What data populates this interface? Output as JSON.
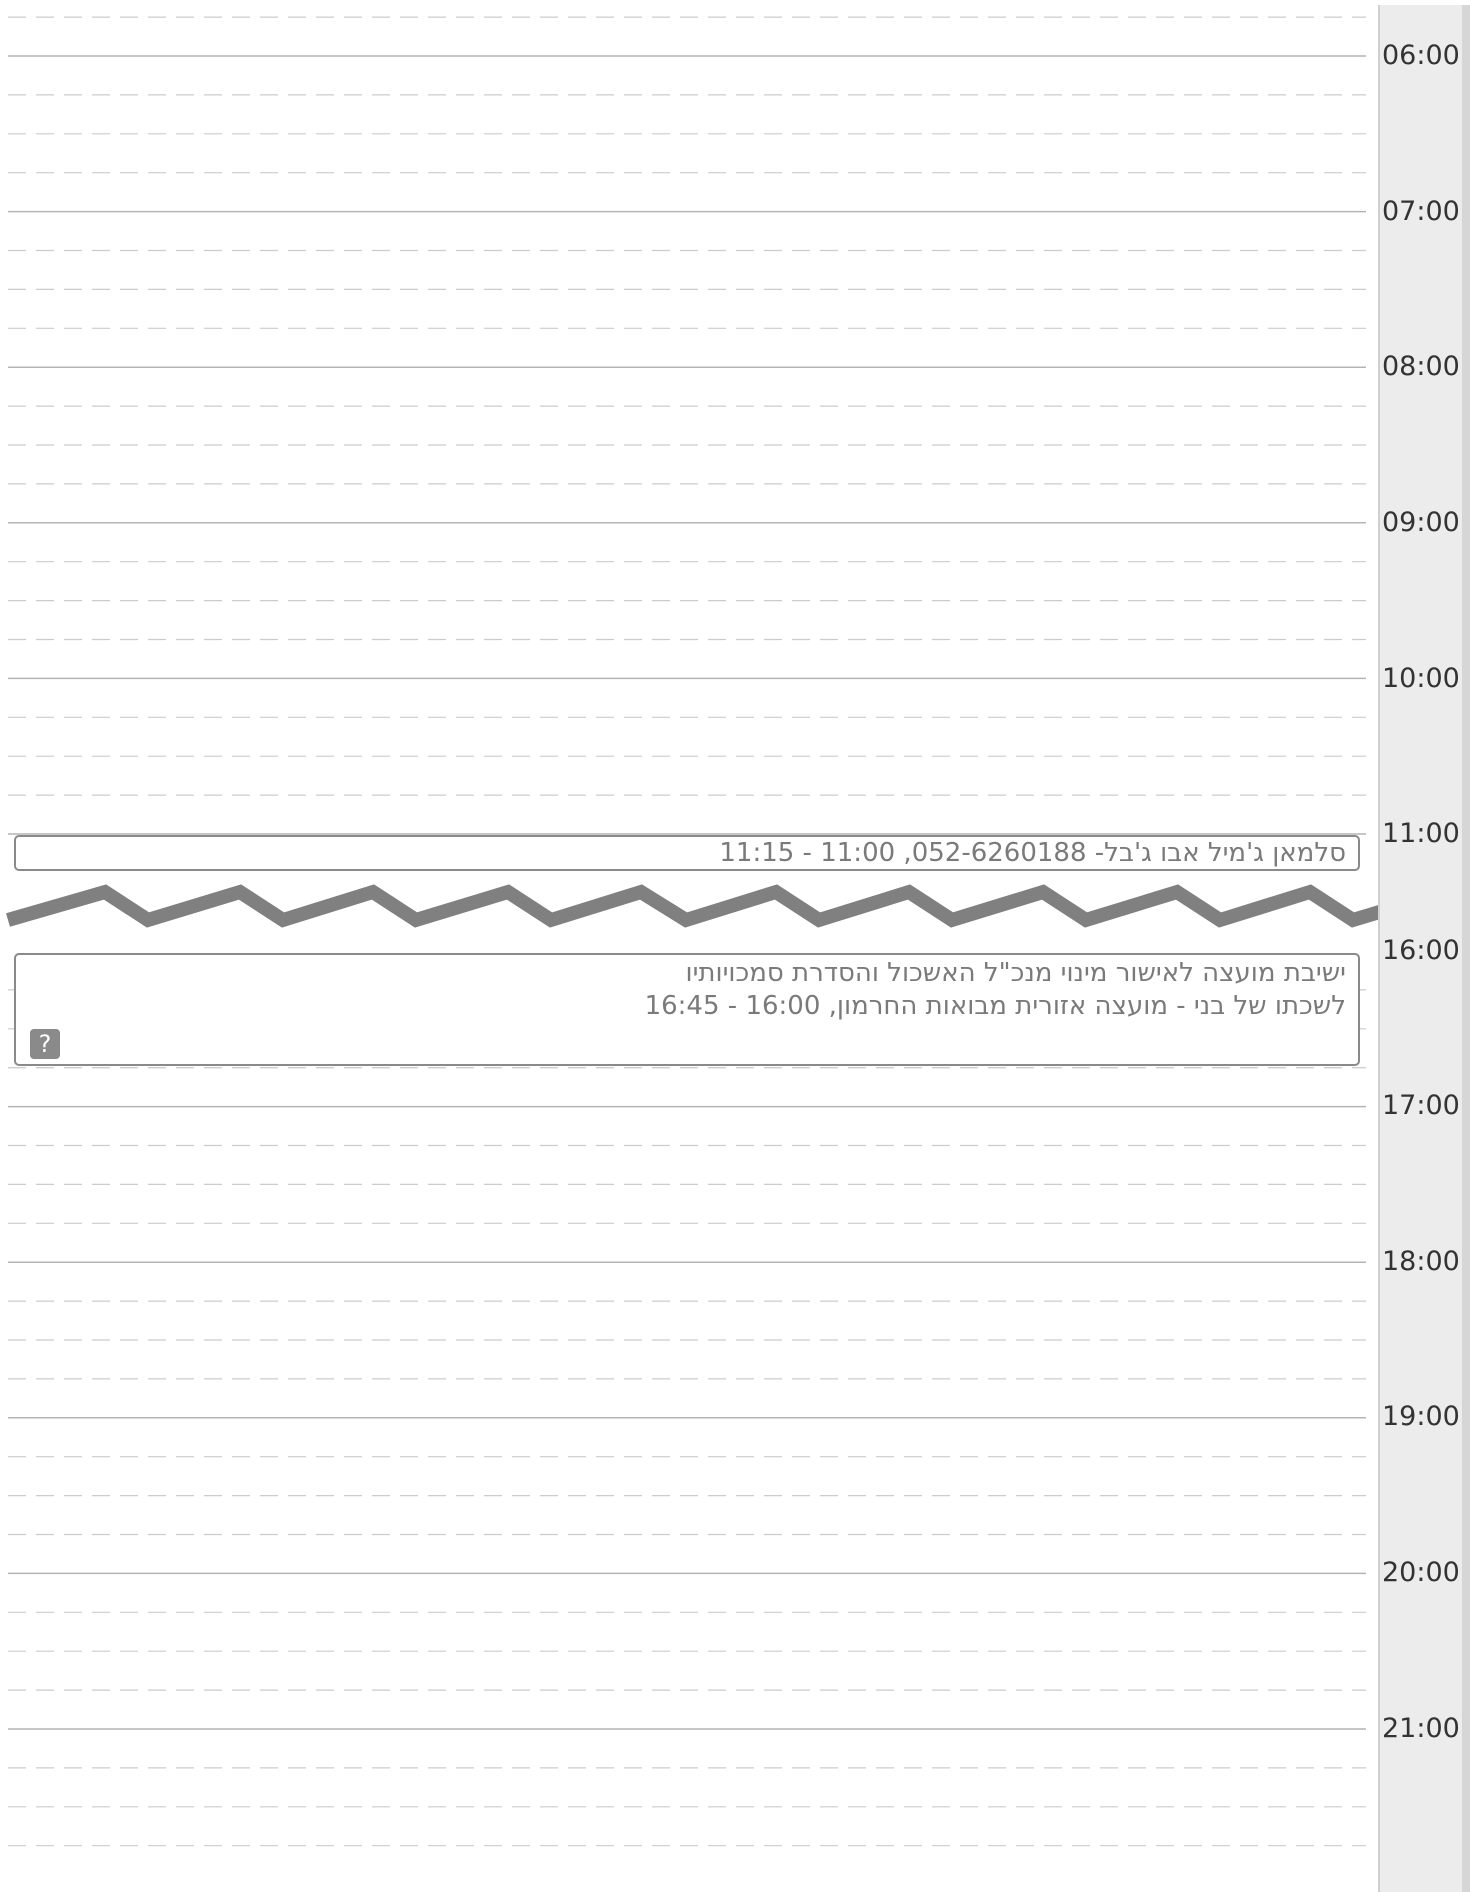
{
  "time_gutter": {
    "hours": [
      "06:00",
      "07:00",
      "08:00",
      "09:00",
      "10:00",
      "11:00",
      "16:00",
      "17:00",
      "18:00",
      "19:00",
      "20:00",
      "21:00"
    ]
  },
  "events": [
    {
      "title": "סלמאן ג'מיל אבו ג'בל- 052-6260188, 11:00 - 11:15"
    },
    {
      "title_line1": "ישיבת מועצה לאישור מינוי מנכ\"ל האשכול והסדרת סמכויותיו",
      "title_line2": "לשכתו של בני - מועצה אזורית מבואות החרמון, 16:00 - 16:45",
      "help_icon": "question-mark-icon",
      "help_glyph": "?"
    }
  ],
  "colors": {
    "hour_line": "#b4b4b4",
    "quarter_line": "#cccccc",
    "gap_marker": "#808080",
    "event_border": "#8a8a8a",
    "event_text": "#7a7a7a"
  }
}
